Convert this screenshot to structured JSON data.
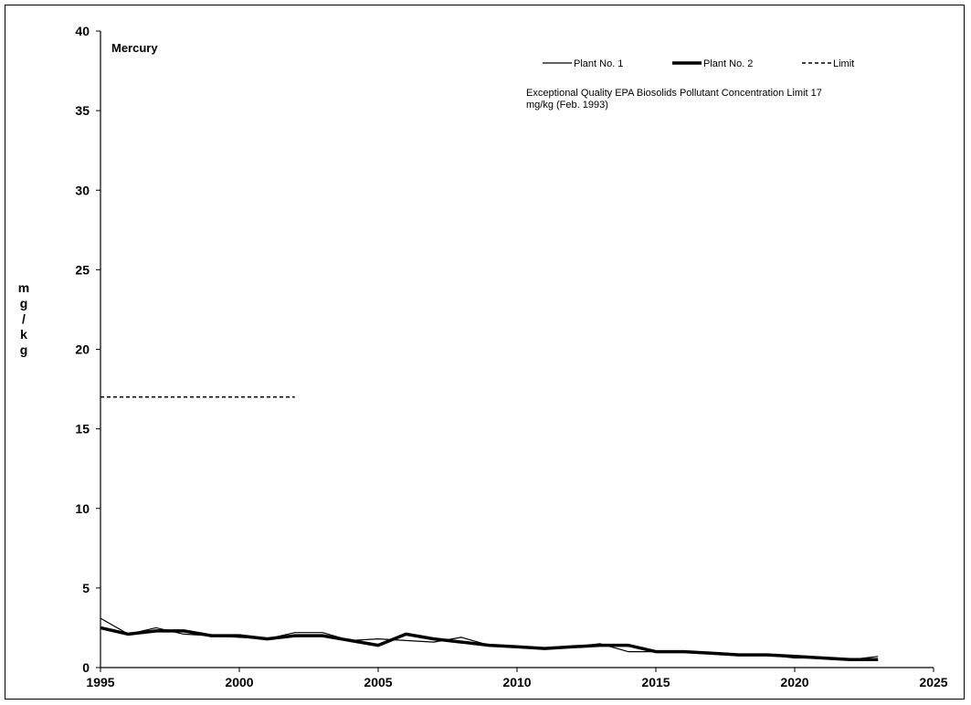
{
  "chart_data": {
    "type": "line",
    "title": "Mercury",
    "xlabel": "",
    "ylabel": "mg/kg",
    "ylabel_chars": [
      "m",
      "g",
      "/",
      "k",
      "g"
    ],
    "xlim": [
      1995,
      2025
    ],
    "ylim": [
      0,
      40
    ],
    "x_ticks": [
      1995,
      2000,
      2005,
      2010,
      2015,
      2020,
      2025
    ],
    "y_ticks": [
      0,
      5,
      10,
      15,
      20,
      25,
      30,
      35,
      40
    ],
    "grid": false,
    "legend_position": "top-right",
    "note": "Exceptional Quality EPA Biosolids Pollutant Concentration Limit 17 mg/kg  (Feb. 1993)",
    "series": [
      {
        "name": "Plant No. 1",
        "style": "thin",
        "color": "#000000",
        "x": [
          1995,
          1996,
          1997,
          1998,
          1999,
          2000,
          2001,
          2002,
          2003,
          2004,
          2005,
          2006,
          2007,
          2008,
          2009,
          2010,
          2011,
          2012,
          2013,
          2014,
          2015,
          2016,
          2017,
          2018,
          2019,
          2020,
          2021,
          2022,
          2023
        ],
        "values": [
          3.1,
          2.1,
          2.5,
          2.1,
          2.0,
          1.9,
          1.8,
          2.2,
          2.2,
          1.7,
          1.8,
          1.7,
          1.6,
          1.9,
          1.4,
          1.3,
          1.2,
          1.3,
          1.5,
          1.0,
          1.0,
          1.0,
          0.9,
          0.8,
          0.8,
          0.6,
          0.6,
          0.5,
          0.7
        ]
      },
      {
        "name": "Plant No. 2",
        "style": "thick",
        "color": "#000000",
        "x": [
          1995,
          1996,
          1997,
          1998,
          1999,
          2000,
          2001,
          2002,
          2003,
          2004,
          2005,
          2006,
          2007,
          2008,
          2009,
          2010,
          2011,
          2012,
          2013,
          2014,
          2015,
          2016,
          2017,
          2018,
          2019,
          2020,
          2021,
          2022,
          2023
        ],
        "values": [
          2.5,
          2.1,
          2.3,
          2.3,
          2.0,
          2.0,
          1.8,
          2.0,
          2.0,
          1.7,
          1.4,
          2.1,
          1.8,
          1.6,
          1.4,
          1.3,
          1.2,
          1.3,
          1.4,
          1.4,
          1.0,
          1.0,
          0.9,
          0.8,
          0.8,
          0.7,
          0.6,
          0.5,
          0.5
        ]
      },
      {
        "name": "Limit",
        "style": "dashed",
        "color": "#000000",
        "x": [
          1995,
          2002
        ],
        "values": [
          17,
          17
        ]
      }
    ]
  }
}
